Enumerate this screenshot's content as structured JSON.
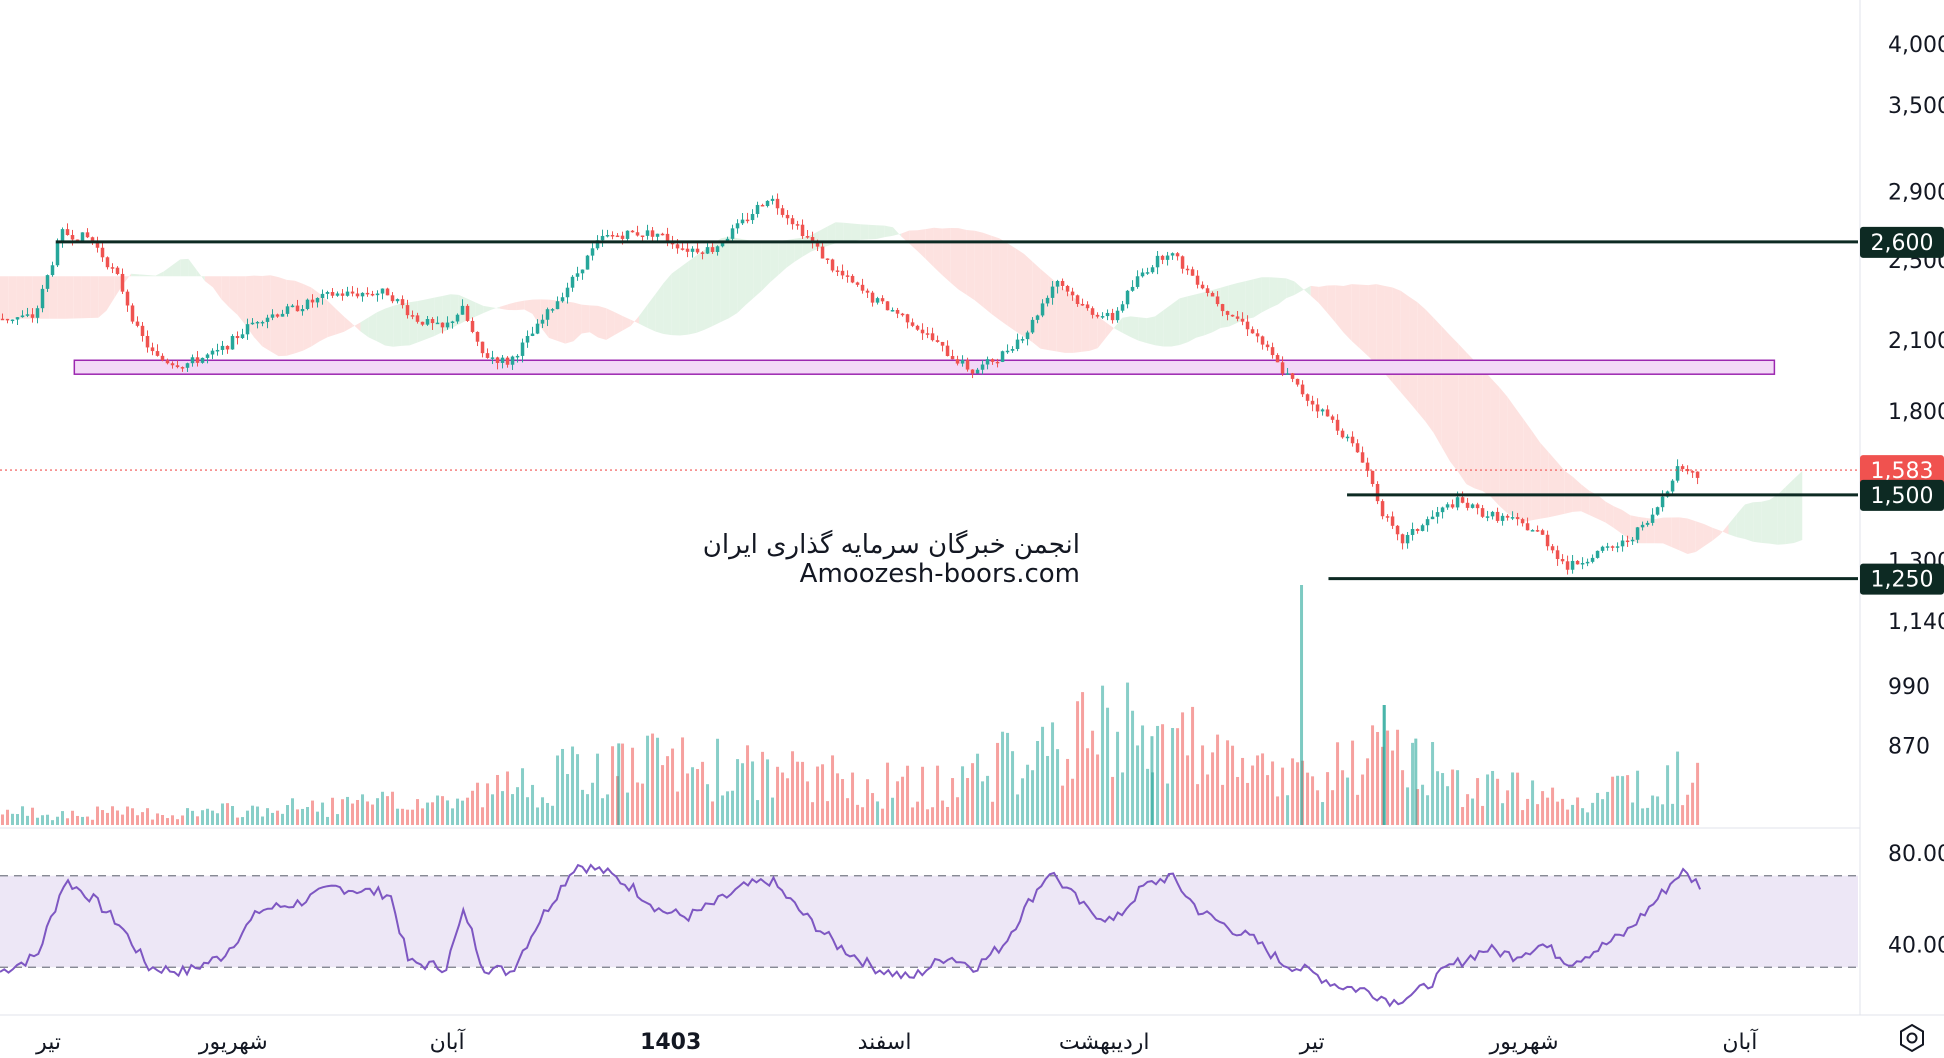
{
  "chart_data": {
    "type": "candlestick",
    "watermark": [
      "انجمن خبرگان سرمایه گذاری ایران",
      "Amoozesh-boors.com"
    ],
    "price_axis": {
      "scale": "log",
      "ticks": [
        4000,
        3500,
        2900,
        2500,
        2100,
        1800,
        1300,
        1140,
        990,
        870
      ],
      "tick_labels": [
        "4,000",
        "3,500",
        "2,900",
        "2,500",
        "2,100",
        "1,800",
        "1,300",
        "1,140",
        "990",
        "870"
      ],
      "range": [
        730,
        4400
      ]
    },
    "rsi_axis": {
      "ticks": [
        80,
        40
      ],
      "tick_labels": [
        "80.00",
        "40.00"
      ],
      "band": [
        30,
        70
      ],
      "range": [
        10,
        90
      ]
    },
    "time_axis": [
      "تیر",
      "شهریور",
      "آبان",
      "1403",
      "اسفند",
      "اردیبهشت",
      "تیر",
      "شهریور",
      "آبان"
    ],
    "levels": [
      {
        "label": "2,600",
        "value": 2600,
        "from": 0.03,
        "to": 1.0
      },
      {
        "label": "1,500",
        "value": 1500,
        "from": 0.725,
        "to": 1.0
      },
      {
        "label": "1,250",
        "value": 1250,
        "from": 0.715,
        "to": 1.0
      }
    ],
    "support_zone": {
      "low": 1950,
      "high": 2010,
      "from": 0.04,
      "to": 0.955
    },
    "last_price": {
      "label": "1,583",
      "value": 1583
    },
    "price_path": [
      {
        "t": 0.0,
        "p": 2200
      },
      {
        "t": 0.02,
        "p": 2210
      },
      {
        "t": 0.035,
        "p": 2650
      },
      {
        "t": 0.05,
        "p": 2620
      },
      {
        "t": 0.065,
        "p": 2400
      },
      {
        "t": 0.075,
        "p": 2150
      },
      {
        "t": 0.085,
        "p": 2020
      },
      {
        "t": 0.1,
        "p": 1990
      },
      {
        "t": 0.12,
        "p": 2050
      },
      {
        "t": 0.14,
        "p": 2200
      },
      {
        "t": 0.16,
        "p": 2250
      },
      {
        "t": 0.18,
        "p": 2320
      },
      {
        "t": 0.21,
        "p": 2330
      },
      {
        "t": 0.225,
        "p": 2200
      },
      {
        "t": 0.24,
        "p": 2150
      },
      {
        "t": 0.25,
        "p": 2250
      },
      {
        "t": 0.26,
        "p": 2040
      },
      {
        "t": 0.275,
        "p": 2000
      },
      {
        "t": 0.29,
        "p": 2150
      },
      {
        "t": 0.31,
        "p": 2400
      },
      {
        "t": 0.325,
        "p": 2620
      },
      {
        "t": 0.34,
        "p": 2650
      },
      {
        "t": 0.355,
        "p": 2650
      },
      {
        "t": 0.37,
        "p": 2560
      },
      {
        "t": 0.385,
        "p": 2560
      },
      {
        "t": 0.4,
        "p": 2700
      },
      {
        "t": 0.415,
        "p": 2870
      },
      {
        "t": 0.43,
        "p": 2700
      },
      {
        "t": 0.45,
        "p": 2450
      },
      {
        "t": 0.47,
        "p": 2300
      },
      {
        "t": 0.49,
        "p": 2200
      },
      {
        "t": 0.51,
        "p": 2050
      },
      {
        "t": 0.525,
        "p": 1960
      },
      {
        "t": 0.54,
        "p": 2030
      },
      {
        "t": 0.555,
        "p": 2150
      },
      {
        "t": 0.57,
        "p": 2400
      },
      {
        "t": 0.585,
        "p": 2250
      },
      {
        "t": 0.6,
        "p": 2200
      },
      {
        "t": 0.615,
        "p": 2420
      },
      {
        "t": 0.63,
        "p": 2550
      },
      {
        "t": 0.645,
        "p": 2400
      },
      {
        "t": 0.66,
        "p": 2250
      },
      {
        "t": 0.675,
        "p": 2150
      },
      {
        "t": 0.69,
        "p": 1980
      },
      {
        "t": 0.705,
        "p": 1850
      },
      {
        "t": 0.72,
        "p": 1750
      },
      {
        "t": 0.735,
        "p": 1620
      },
      {
        "t": 0.745,
        "p": 1450
      },
      {
        "t": 0.755,
        "p": 1350
      },
      {
        "t": 0.77,
        "p": 1420
      },
      {
        "t": 0.785,
        "p": 1480
      },
      {
        "t": 0.8,
        "p": 1440
      },
      {
        "t": 0.815,
        "p": 1420
      },
      {
        "t": 0.83,
        "p": 1380
      },
      {
        "t": 0.845,
        "p": 1280
      },
      {
        "t": 0.86,
        "p": 1320
      },
      {
        "t": 0.875,
        "p": 1350
      },
      {
        "t": 0.89,
        "p": 1420
      },
      {
        "t": 0.905,
        "p": 1600
      },
      {
        "t": 0.915,
        "p": 1560
      }
    ],
    "rsi_path": [
      {
        "t": 0.0,
        "v": 28
      },
      {
        "t": 0.02,
        "v": 35
      },
      {
        "t": 0.035,
        "v": 68
      },
      {
        "t": 0.05,
        "v": 60
      },
      {
        "t": 0.065,
        "v": 48
      },
      {
        "t": 0.08,
        "v": 30
      },
      {
        "t": 0.1,
        "v": 28
      },
      {
        "t": 0.12,
        "v": 35
      },
      {
        "t": 0.14,
        "v": 55
      },
      {
        "t": 0.16,
        "v": 58
      },
      {
        "t": 0.18,
        "v": 65
      },
      {
        "t": 0.21,
        "v": 62
      },
      {
        "t": 0.22,
        "v": 32
      },
      {
        "t": 0.24,
        "v": 30
      },
      {
        "t": 0.25,
        "v": 55
      },
      {
        "t": 0.26,
        "v": 30
      },
      {
        "t": 0.275,
        "v": 28
      },
      {
        "t": 0.29,
        "v": 50
      },
      {
        "t": 0.31,
        "v": 75
      },
      {
        "t": 0.325,
        "v": 72
      },
      {
        "t": 0.34,
        "v": 65
      },
      {
        "t": 0.355,
        "v": 55
      },
      {
        "t": 0.37,
        "v": 52
      },
      {
        "t": 0.385,
        "v": 58
      },
      {
        "t": 0.4,
        "v": 65
      },
      {
        "t": 0.415,
        "v": 68
      },
      {
        "t": 0.43,
        "v": 55
      },
      {
        "t": 0.45,
        "v": 40
      },
      {
        "t": 0.47,
        "v": 30
      },
      {
        "t": 0.49,
        "v": 25
      },
      {
        "t": 0.51,
        "v": 35
      },
      {
        "t": 0.525,
        "v": 30
      },
      {
        "t": 0.54,
        "v": 40
      },
      {
        "t": 0.555,
        "v": 60
      },
      {
        "t": 0.565,
        "v": 72
      },
      {
        "t": 0.585,
        "v": 55
      },
      {
        "t": 0.6,
        "v": 50
      },
      {
        "t": 0.615,
        "v": 65
      },
      {
        "t": 0.63,
        "v": 70
      },
      {
        "t": 0.645,
        "v": 55
      },
      {
        "t": 0.66,
        "v": 48
      },
      {
        "t": 0.675,
        "v": 42
      },
      {
        "t": 0.69,
        "v": 32
      },
      {
        "t": 0.705,
        "v": 28
      },
      {
        "t": 0.72,
        "v": 22
      },
      {
        "t": 0.735,
        "v": 20
      },
      {
        "t": 0.75,
        "v": 15
      },
      {
        "t": 0.765,
        "v": 20
      },
      {
        "t": 0.78,
        "v": 30
      },
      {
        "t": 0.8,
        "v": 38
      },
      {
        "t": 0.815,
        "v": 35
      },
      {
        "t": 0.83,
        "v": 40
      },
      {
        "t": 0.845,
        "v": 32
      },
      {
        "t": 0.86,
        "v": 38
      },
      {
        "t": 0.875,
        "v": 45
      },
      {
        "t": 0.89,
        "v": 58
      },
      {
        "t": 0.905,
        "v": 72
      },
      {
        "t": 0.915,
        "v": 66
      }
    ],
    "volume_path": [
      {
        "t": 0.0,
        "v": 5
      },
      {
        "t": 0.1,
        "v": 5
      },
      {
        "t": 0.18,
        "v": 8
      },
      {
        "t": 0.24,
        "v": 10
      },
      {
        "t": 0.3,
        "v": 20
      },
      {
        "t": 0.36,
        "v": 25
      },
      {
        "t": 0.42,
        "v": 20
      },
      {
        "t": 0.5,
        "v": 15
      },
      {
        "t": 0.58,
        "v": 35
      },
      {
        "t": 0.62,
        "v": 40
      },
      {
        "t": 0.665,
        "v": 20
      },
      {
        "t": 0.7,
        "v": 20
      },
      {
        "t": 0.75,
        "v": 28
      },
      {
        "t": 0.8,
        "v": 15
      },
      {
        "t": 0.85,
        "v": 12
      },
      {
        "t": 0.915,
        "v": 22
      }
    ],
    "volume_spikes": [
      {
        "t": 0.7005,
        "v": 100
      },
      {
        "t": 0.745,
        "v": 50
      },
      {
        "t": 0.745,
        "v": 50
      },
      {
        "t": 0.333,
        "v": 34
      },
      {
        "t": 0.62,
        "v": 37
      },
      {
        "t": 0.762,
        "v": 36
      }
    ],
    "colors": {
      "up": "#26a69a",
      "down": "#ef5350",
      "level": "#0d2a23",
      "zone_fill": "#f3d9f7",
      "zone_stroke": "#9c27b0",
      "rsi_line": "#7e57c2",
      "rsi_band": "#ede7f6",
      "cloud_bear": "#fde2e0",
      "cloud_bull": "#e3f3e6",
      "last_price": "#f0524f"
    }
  }
}
